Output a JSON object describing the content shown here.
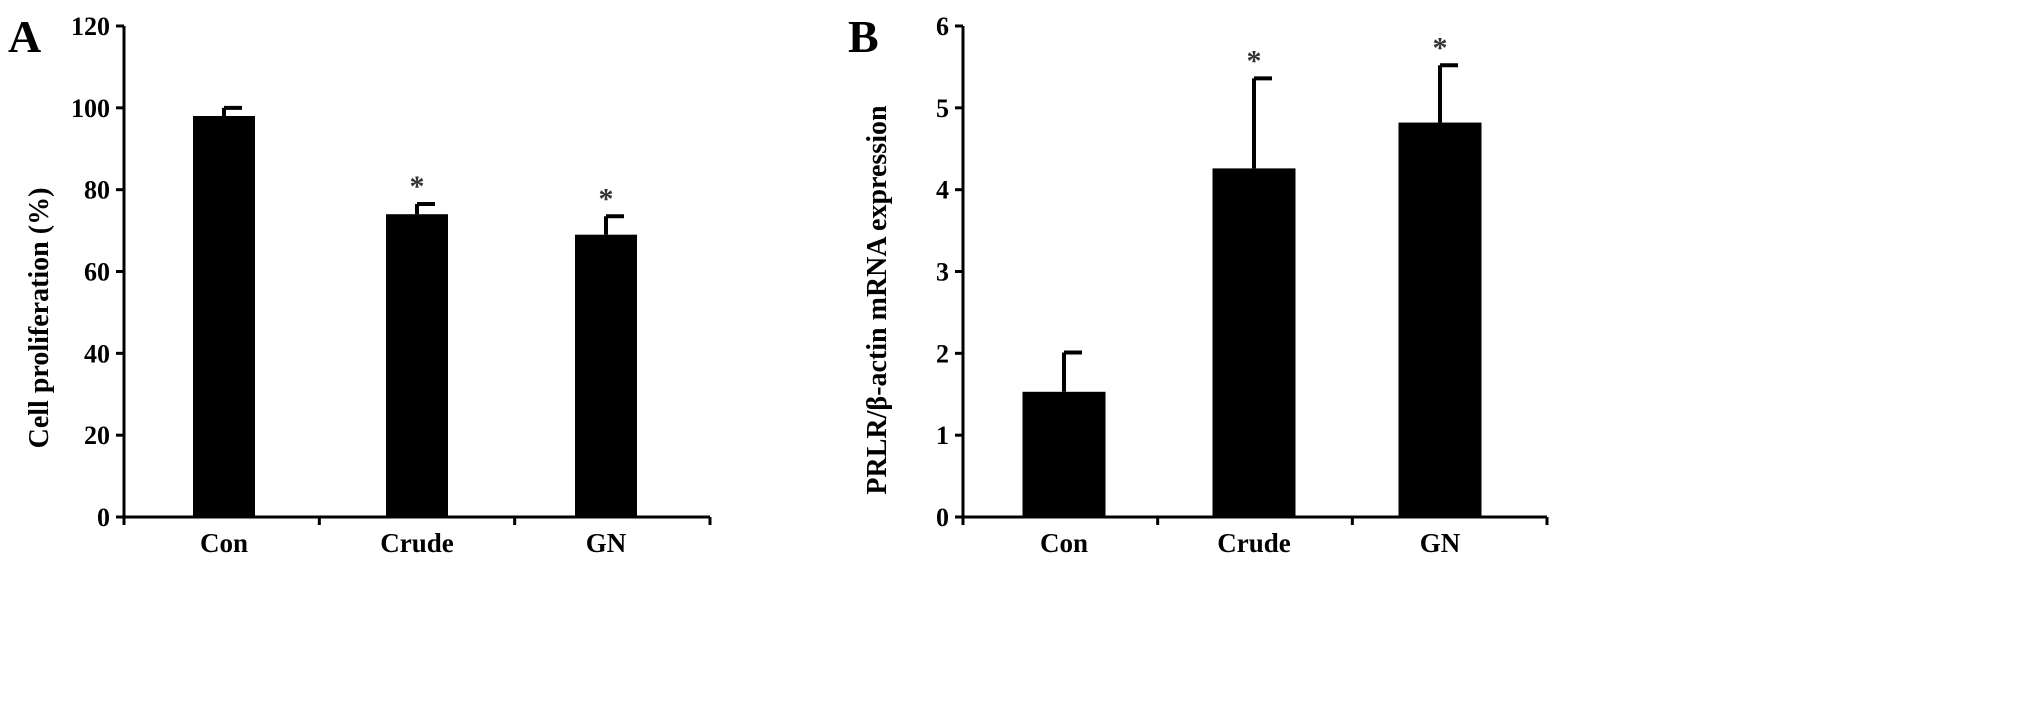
{
  "chart_data": [
    {
      "panel": "A",
      "type": "bar",
      "categories": [
        "Con",
        "Crude",
        "GN"
      ],
      "values": [
        98,
        74,
        69
      ],
      "errors": [
        2,
        2.5,
        4.5
      ],
      "significance": [
        "",
        "*",
        "*"
      ],
      "ylabel": "Cell proliferation (%)",
      "xlabel": "",
      "ylim": [
        0,
        120
      ],
      "yticks": [
        0,
        20,
        40,
        60,
        80,
        100,
        120
      ],
      "bar_color": "#000000",
      "grid": false
    },
    {
      "panel": "B",
      "type": "bar",
      "categories": [
        "Con",
        "Crude",
        "GN"
      ],
      "values": [
        1.53,
        4.26,
        4.82
      ],
      "errors": [
        0.48,
        1.1,
        0.7
      ],
      "significance": [
        "",
        "*",
        "*"
      ],
      "ylabel": "PRLR/β-actin mRNA expression",
      "xlabel": "",
      "ylim": [
        0,
        6
      ],
      "yticks": [
        0,
        1,
        2,
        3,
        4,
        5,
        6
      ],
      "bar_color": "#000000",
      "grid": false
    }
  ]
}
